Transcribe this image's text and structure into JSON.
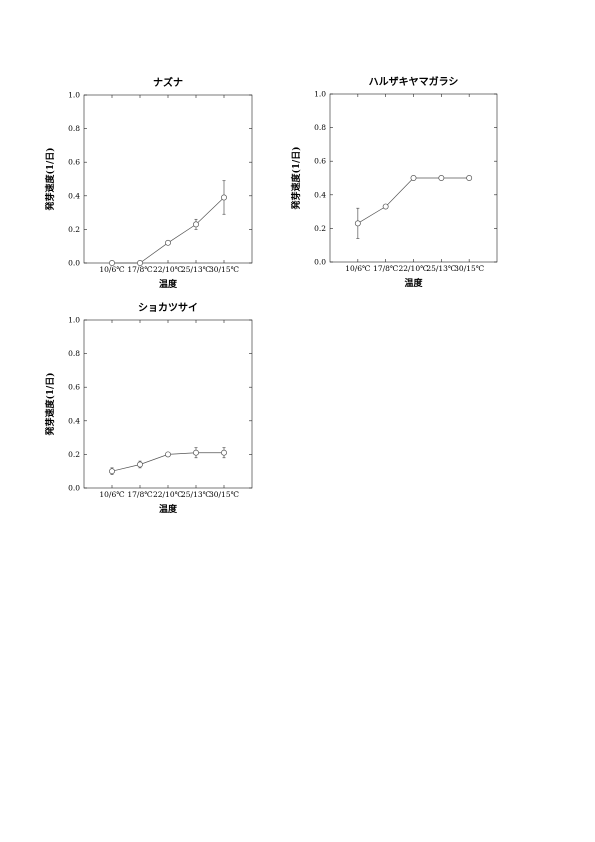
{
  "chart_data": [
    {
      "type": "line",
      "title": "ナズナ",
      "xlabel": "温度",
      "ylabel": "発芽速度(1/日)",
      "categories": [
        "10/6℃",
        "17/8℃",
        "22/10℃",
        "25/13℃",
        "30/15℃"
      ],
      "ylim": [
        0,
        1.0
      ],
      "yticks": [
        "0.0",
        "0.2",
        "0.4",
        "0.6",
        "0.8",
        "1.0"
      ],
      "grid": false,
      "series": [
        {
          "values": [
            0.0,
            0.0,
            0.12,
            0.23,
            0.39
          ],
          "errors": [
            0.0,
            0.0,
            0.0,
            0.03,
            0.1
          ],
          "color": "#555555"
        }
      ]
    },
    {
      "type": "line",
      "title": "ハルザキヤマガラシ",
      "xlabel": "温度",
      "ylabel": "発芽速度(1/日)",
      "categories": [
        "10/6℃",
        "17/8℃",
        "22/10℃",
        "25/13℃",
        "30/15℃"
      ],
      "ylim": [
        0,
        1.0
      ],
      "yticks": [
        "0.0",
        "0.2",
        "0.4",
        "0.6",
        "0.8",
        "1.0"
      ],
      "grid": false,
      "series": [
        {
          "values": [
            0.23,
            0.33,
            0.5,
            0.5,
            0.5
          ],
          "errors": [
            0.09,
            0.0,
            0.0,
            0.0,
            0.0
          ],
          "color": "#555555"
        }
      ]
    },
    {
      "type": "line",
      "title": "ショカツサイ",
      "xlabel": "温度",
      "ylabel": "発芽速度(1/日)",
      "categories": [
        "10/6℃",
        "17/8℃",
        "22/10℃",
        "25/13℃",
        "30/15℃"
      ],
      "ylim": [
        0,
        1.0
      ],
      "yticks": [
        "0.0",
        "0.2",
        "0.4",
        "0.6",
        "0.8",
        "1.0"
      ],
      "grid": false,
      "series": [
        {
          "values": [
            0.1,
            0.14,
            0.2,
            0.21,
            0.21
          ],
          "errors": [
            0.02,
            0.02,
            0.0,
            0.03,
            0.03
          ],
          "color": "#555555"
        }
      ]
    }
  ]
}
